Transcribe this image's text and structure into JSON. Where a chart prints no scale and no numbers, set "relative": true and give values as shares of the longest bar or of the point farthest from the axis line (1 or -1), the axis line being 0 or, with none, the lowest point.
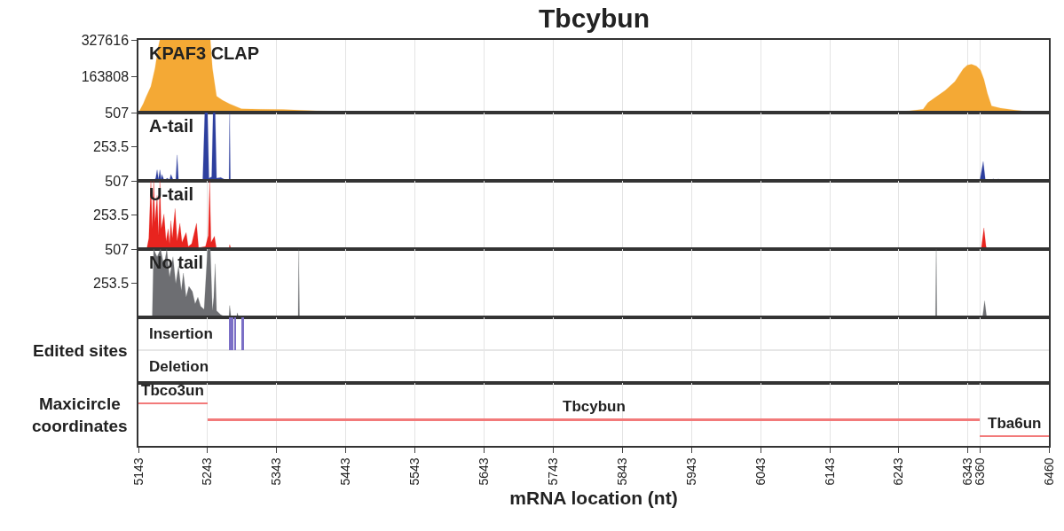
{
  "chart_data": [
    {
      "type": "area",
      "title": "Tbcybun",
      "xlim": [
        5143,
        6460
      ],
      "xticks": [
        5143,
        5243,
        5343,
        5443,
        5543,
        5643,
        5743,
        5843,
        5943,
        6043,
        6143,
        6243,
        6343,
        6360,
        6460
      ],
      "ylim": [
        0,
        327616
      ],
      "yticks": [
        163808,
        327616
      ],
      "tick_labels": "y",
      "grid": "x",
      "series": [
        {
          "name": "KPAF3 CLAP",
          "color": "#f4a935",
          "x": [
            5144,
            5150,
            5154,
            5161,
            5167,
            5172,
            5174,
            5247,
            5250,
            5256,
            5265,
            5275,
            5282,
            5292,
            5320,
            5352,
            5400,
            5428,
            5479,
            5560,
            5620,
            5642,
            5665,
            5700,
            5740,
            5760,
            5850,
            6000,
            6100,
            6154,
            6200,
            6250,
            6278,
            6285,
            6294,
            6310,
            6324,
            6336,
            6342,
            6348,
            6355,
            6361,
            6366,
            6371,
            6377,
            6390,
            6409,
            6430,
            6445,
            6460
          ],
          "values": [
            5000,
            40000,
            70000,
            118000,
            200000,
            300000,
            327616,
            327616,
            200000,
            74000,
            55000,
            39000,
            30000,
            17000,
            15000,
            14000,
            8000,
            5000,
            2500,
            2000,
            3000,
            5000,
            3000,
            2000,
            4000,
            2000,
            1000,
            1000,
            2000,
            4000,
            2000,
            5000,
            15000,
            45000,
            65000,
            100000,
            140000,
            197000,
            214000,
            218000,
            210000,
            192000,
            150000,
            87000,
            30000,
            20000,
            12000,
            5000,
            0,
            0
          ]
        }
      ]
    },
    {
      "type": "area",
      "xlim": [
        5143,
        6460
      ],
      "xticks": [
        5143,
        5243,
        5343,
        5443,
        5543,
        5643,
        5743,
        5843,
        5943,
        6043,
        6143,
        6243,
        6343,
        6360,
        6460
      ],
      "ylim": [
        0,
        507
      ],
      "yticks": [
        253.5,
        507
      ],
      "tick_labels": "y",
      "grid": "x",
      "series": [
        {
          "name": "A-tail",
          "color": "#2d3f9e",
          "x": [
            5143,
            5165,
            5168,
            5170,
            5172,
            5174,
            5176,
            5177,
            5180,
            5185,
            5188,
            5190,
            5193,
            5197,
            5199,
            5201,
            5210,
            5220,
            5236,
            5239,
            5243,
            5245,
            5249,
            5251,
            5254,
            5256,
            5262,
            5268,
            5274,
            5275,
            5276,
            5285,
            5288,
            6360,
            6365,
            6368,
            6372,
            6380,
            6382,
            6387,
            6389,
            6460
          ],
          "values": [
            0,
            0,
            20,
            82,
            10,
            82,
            10,
            48,
            5,
            20,
            5,
            48,
            10,
            5,
            192,
            5,
            10,
            0,
            0,
            507,
            507,
            20,
            30,
            507,
            507,
            20,
            25,
            10,
            0,
            507,
            0,
            10,
            0,
            0,
            144,
            10,
            0,
            14,
            0,
            14,
            0,
            0
          ]
        }
      ]
    },
    {
      "type": "area",
      "xlim": [
        5143,
        6460
      ],
      "xticks": [
        5143,
        5243,
        5343,
        5443,
        5543,
        5643,
        5743,
        5843,
        5943,
        6043,
        6143,
        6243,
        6343,
        6360,
        6460
      ],
      "ylim": [
        0,
        507
      ],
      "yticks": [
        253.5,
        507
      ],
      "tick_labels": "y",
      "grid": "x",
      "series": [
        {
          "name": "U-tail",
          "color": "#e8241f",
          "x": [
            5143,
            5155,
            5158,
            5161,
            5163,
            5165,
            5167,
            5170,
            5172,
            5174,
            5176,
            5180,
            5183,
            5186,
            5188,
            5190,
            5192,
            5196,
            5199,
            5203,
            5206,
            5212,
            5215,
            5220,
            5227,
            5230,
            5240,
            5244,
            5246,
            5248,
            5253,
            5256,
            5274,
            5275,
            5277,
            6362,
            6366,
            6369,
            6371,
            6460
          ],
          "values": [
            0,
            0,
            80,
            507,
            150,
            507,
            200,
            400,
            100,
            507,
            150,
            260,
            60,
            150,
            40,
            212,
            80,
            301,
            60,
            192,
            50,
            123,
            20,
            40,
            192,
            10,
            20,
            100,
            507,
            50,
            96,
            0,
            0,
            34,
            0,
            0,
            158,
            20,
            0,
            0
          ]
        }
      ]
    },
    {
      "type": "area",
      "xlim": [
        5143,
        6460
      ],
      "xticks": [
        5143,
        5243,
        5343,
        5443,
        5543,
        5643,
        5743,
        5843,
        5943,
        6043,
        6143,
        6243,
        6343,
        6360,
        6460
      ],
      "ylim": [
        0,
        507
      ],
      "yticks": [
        253.5,
        507
      ],
      "tick_labels": "y",
      "grid": "x",
      "series": [
        {
          "name": "No tail",
          "color": "#6d6e72",
          "x": [
            5143,
            5163,
            5165,
            5170,
            5175,
            5180,
            5184,
            5188,
            5193,
            5197,
            5201,
            5205,
            5208,
            5212,
            5216,
            5221,
            5225,
            5229,
            5233,
            5238,
            5243,
            5247,
            5250,
            5252,
            5254,
            5256,
            5262,
            5270,
            5274,
            5275,
            5277,
            5285,
            5286,
            5288,
            5374,
            5375,
            5376,
            6296,
            6297,
            6298,
            6364,
            6367,
            6370,
            6411,
            6412,
            6413,
            6460
          ],
          "values": [
            0,
            0,
            507,
            450,
            507,
            380,
            507,
            300,
            450,
            250,
            380,
            200,
            329,
            150,
            230,
            192,
            100,
            150,
            82,
            60,
            507,
            507,
            50,
            150,
            397,
            50,
            20,
            0,
            10,
            89,
            0,
            0,
            34,
            0,
            0,
            507,
            0,
            0,
            507,
            0,
            0,
            123,
            0,
            0,
            7,
            0,
            0
          ]
        }
      ]
    },
    {
      "type": "bar",
      "ylabel": "Edited sites",
      "xlim": [
        5143,
        6460
      ],
      "xticks": [
        5143,
        5243,
        5343,
        5443,
        5543,
        5643,
        5743,
        5843,
        5943,
        6043,
        6143,
        6243,
        6343,
        6360,
        6460
      ],
      "tick_labels": false,
      "grid": "x",
      "relative": true,
      "color": "#7b6fc6",
      "x": [
        5276,
        5279,
        5283,
        5294
      ],
      "values": [
        1,
        1,
        1,
        1
      ],
      "annotations": [
        "Insertion",
        "Deletion"
      ]
    },
    {
      "type": "bar",
      "orientation": "horizontal",
      "ylabel": "Maxicircle\ncoordinates",
      "xlabel": "mRNA location (nt)",
      "xlim": [
        5143,
        6460
      ],
      "xticks": [
        5143,
        5243,
        5343,
        5443,
        5543,
        5643,
        5743,
        5843,
        5943,
        6043,
        6143,
        6243,
        6343,
        6360,
        6460
      ],
      "tick_labels": "x",
      "grid": "x",
      "color": "#f27a7a",
      "categories": [
        null,
        null,
        null
      ],
      "base": [
        5143,
        5243,
        6360
      ],
      "values": [
        100,
        1117,
        100
      ],
      "annotations": [
        "Tbco3un",
        "Tbcybun",
        "Tba6un"
      ]
    }
  ]
}
